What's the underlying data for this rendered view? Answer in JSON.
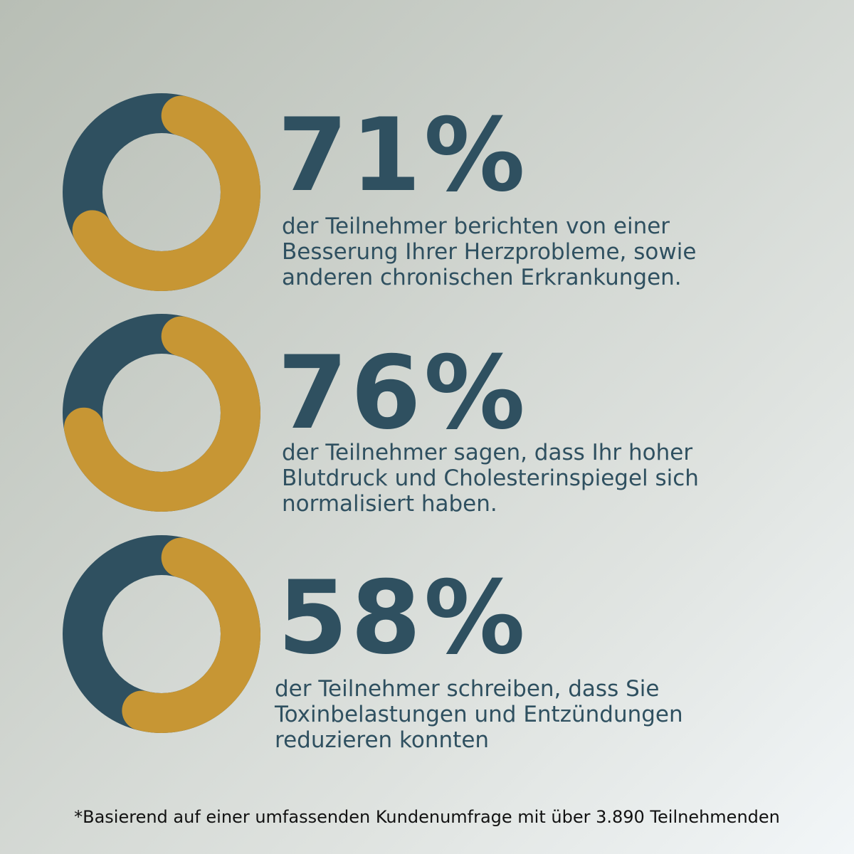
{
  "colors": {
    "primary": "#2f5060",
    "accent": "#c79634",
    "text": "#2f5060",
    "footnote": "#111111"
  },
  "stats": [
    {
      "percent_label": "71%",
      "description": "der Teilnehmer berichten von einer Besserung Ihrer Herzprobleme, sowie anderen chronischen Erkrankungen."
    },
    {
      "percent_label": "76%",
      "description": "der Teilnehmer sagen, dass Ihr hoher Blutdruck und Cholesterinspiegel sich normalisiert haben."
    },
    {
      "percent_label": "58%",
      "description": "der Teilnehmer schreiben, dass Sie Toxinbelastungen und Entzündungen reduzieren konnten"
    }
  ],
  "footnote": "*Basierend auf einer umfassenden Kundenumfrage mit über 3.890 Teilnehmenden",
  "chart_data": [
    {
      "type": "pie",
      "categories": [
        "",
        ""
      ],
      "values": [
        71,
        29
      ]
    },
    {
      "type": "pie",
      "categories": [
        "",
        ""
      ],
      "values": [
        76,
        24
      ]
    },
    {
      "type": "pie",
      "categories": [
        "",
        ""
      ],
      "values": [
        58,
        42
      ]
    }
  ]
}
